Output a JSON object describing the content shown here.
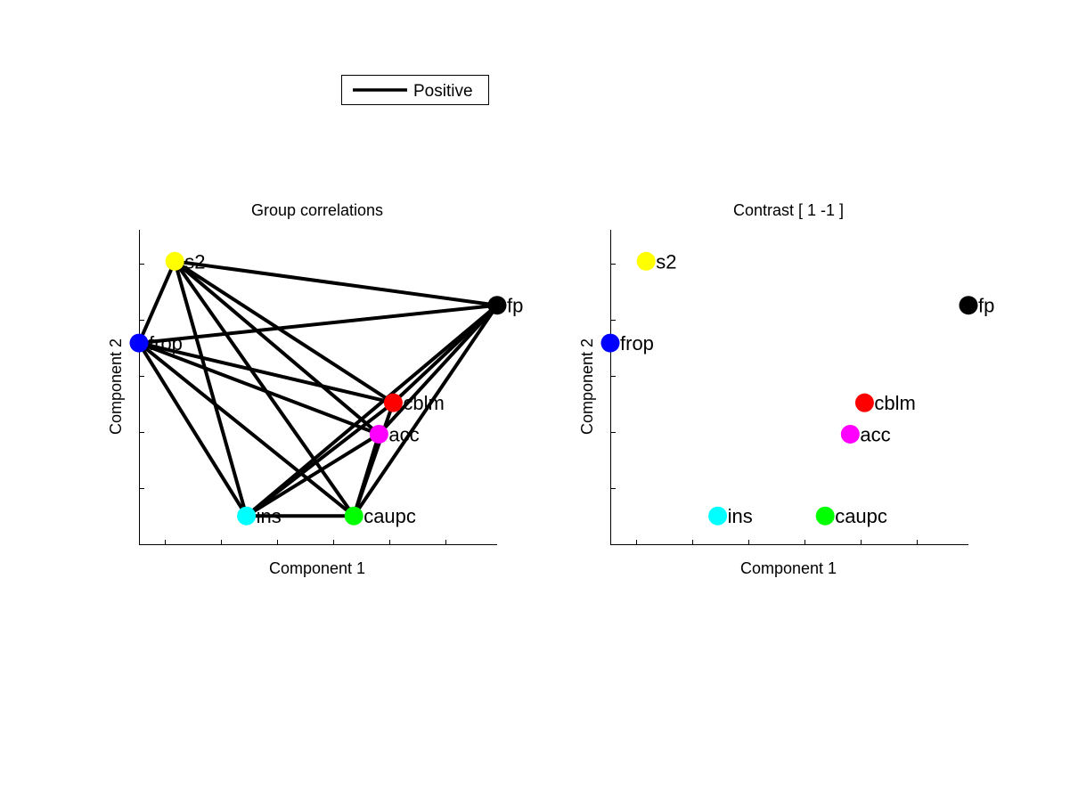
{
  "legend": {
    "entries": [
      {
        "label": "Positive",
        "color": "#000000"
      }
    ]
  },
  "chart_data": [
    {
      "type": "scatter",
      "title": "Group correlations",
      "xlabel": "Component 1",
      "ylabel": "Component 2",
      "xlim": [
        0,
        1
      ],
      "ylim": [
        0,
        1
      ],
      "grid": false,
      "nodes": [
        {
          "label": "s2",
          "x": 0.1,
          "y": 0.9,
          "color": "#ffff00"
        },
        {
          "label": "fp",
          "x": 1.0,
          "y": 0.76,
          "color": "#000000"
        },
        {
          "label": "frop",
          "x": 0.0,
          "y": 0.64,
          "color": "#0000ff"
        },
        {
          "label": "cblm",
          "x": 0.71,
          "y": 0.45,
          "color": "#ff0000"
        },
        {
          "label": "acc",
          "x": 0.67,
          "y": 0.35,
          "color": "#ff00ff"
        },
        {
          "label": "ins",
          "x": 0.3,
          "y": 0.09,
          "color": "#00ffff"
        },
        {
          "label": "caupc",
          "x": 0.6,
          "y": 0.09,
          "color": "#00ff00"
        }
      ],
      "edges": [
        {
          "from": "s2",
          "to": "frop",
          "sign": "Positive"
        },
        {
          "from": "s2",
          "to": "fp",
          "sign": "Positive"
        },
        {
          "from": "s2",
          "to": "cblm",
          "sign": "Positive"
        },
        {
          "from": "s2",
          "to": "acc",
          "sign": "Positive"
        },
        {
          "from": "s2",
          "to": "ins",
          "sign": "Positive"
        },
        {
          "from": "s2",
          "to": "caupc",
          "sign": "Positive"
        },
        {
          "from": "frop",
          "to": "fp",
          "sign": "Positive"
        },
        {
          "from": "frop",
          "to": "cblm",
          "sign": "Positive"
        },
        {
          "from": "frop",
          "to": "acc",
          "sign": "Positive"
        },
        {
          "from": "frop",
          "to": "ins",
          "sign": "Positive"
        },
        {
          "from": "frop",
          "to": "caupc",
          "sign": "Positive"
        },
        {
          "from": "fp",
          "to": "cblm",
          "sign": "Positive"
        },
        {
          "from": "fp",
          "to": "acc",
          "sign": "Positive"
        },
        {
          "from": "fp",
          "to": "ins",
          "sign": "Positive"
        },
        {
          "from": "fp",
          "to": "caupc",
          "sign": "Positive"
        },
        {
          "from": "cblm",
          "to": "ins",
          "sign": "Positive"
        },
        {
          "from": "cblm",
          "to": "caupc",
          "sign": "Positive"
        },
        {
          "from": "acc",
          "to": "ins",
          "sign": "Positive"
        },
        {
          "from": "acc",
          "to": "caupc",
          "sign": "Positive"
        },
        {
          "from": "ins",
          "to": "caupc",
          "sign": "Positive"
        }
      ]
    },
    {
      "type": "scatter",
      "title": "Contrast [ 1 -1 ]",
      "xlabel": "Component 1",
      "ylabel": "Component 2",
      "xlim": [
        0,
        1
      ],
      "ylim": [
        0,
        1
      ],
      "grid": false,
      "nodes": [
        {
          "label": "s2",
          "x": 0.1,
          "y": 0.9,
          "color": "#ffff00"
        },
        {
          "label": "fp",
          "x": 1.0,
          "y": 0.76,
          "color": "#000000"
        },
        {
          "label": "frop",
          "x": 0.0,
          "y": 0.64,
          "color": "#0000ff"
        },
        {
          "label": "cblm",
          "x": 0.71,
          "y": 0.45,
          "color": "#ff0000"
        },
        {
          "label": "acc",
          "x": 0.67,
          "y": 0.35,
          "color": "#ff00ff"
        },
        {
          "label": "ins",
          "x": 0.3,
          "y": 0.09,
          "color": "#00ffff"
        },
        {
          "label": "caupc",
          "x": 0.6,
          "y": 0.09,
          "color": "#00ff00"
        }
      ],
      "edges": []
    }
  ]
}
